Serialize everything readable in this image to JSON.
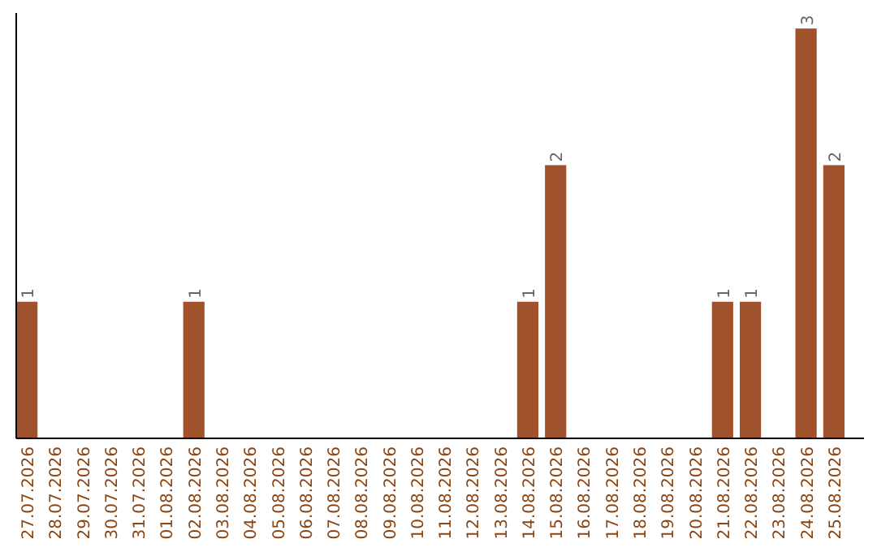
{
  "chart_data": {
    "type": "bar",
    "categories": [
      "27.07.2026",
      "28.07.2026",
      "29.07.2026",
      "30.07.2026",
      "31.07.2026",
      "01.08.2026",
      "02.08.2026",
      "03.08.2026",
      "04.08.2026",
      "05.08.2026",
      "06.08.2026",
      "07.08.2026",
      "08.08.2026",
      "09.08.2026",
      "10.08.2026",
      "11.08.2026",
      "12.08.2026",
      "13.08.2026",
      "14.08.2026",
      "15.08.2026",
      "16.08.2026",
      "17.08.2026",
      "18.08.2026",
      "19.08.2026",
      "20.08.2026",
      "21.08.2026",
      "22.08.2026",
      "23.08.2026",
      "24.08.2026",
      "25.08.2026"
    ],
    "values": [
      1,
      null,
      null,
      null,
      null,
      null,
      1,
      null,
      null,
      null,
      null,
      null,
      null,
      null,
      null,
      null,
      null,
      null,
      1,
      2,
      null,
      null,
      null,
      null,
      null,
      1,
      1,
      null,
      3,
      2
    ],
    "color": "#a0522d",
    "data_labels": true
  }
}
